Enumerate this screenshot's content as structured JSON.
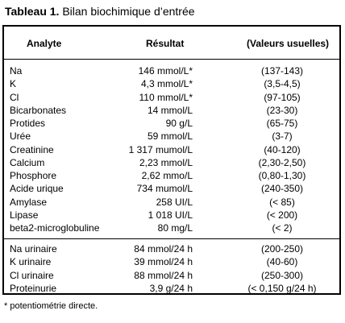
{
  "title": {
    "label": "Tableau 1.",
    "text": " Bilan biochimique d’entrée"
  },
  "headers": {
    "analyte": "Analyte",
    "result": "Résultat",
    "ref": "(Valeurs usuelles)"
  },
  "group1": [
    {
      "analyte": "Na",
      "result": "146 mmol/L*",
      "ref": "(137-143)"
    },
    {
      "analyte": "K",
      "result": "4,3 mmol/L*",
      "ref": "(3,5-4,5)"
    },
    {
      "analyte": "Cl",
      "result": "110 mmol/L*",
      "ref": "(97-105)"
    },
    {
      "analyte": "Bicarbonates",
      "result": "14 mmol/L",
      "ref": "(23-30)"
    },
    {
      "analyte": "Protides",
      "result": "90 g/L",
      "ref": "(65-75)"
    },
    {
      "analyte": "Urée",
      "result": "59 mmol/L",
      "ref": "(3-7)"
    },
    {
      "analyte": "Creatinine",
      "result": "1 317 mumol/L",
      "ref": "(40-120)"
    },
    {
      "analyte": "Calcium",
      "result": "2,23 mmol/L",
      "ref": "(2,30-2,50)"
    },
    {
      "analyte": "Phosphore",
      "result": "2,62 mmo/L",
      "ref": "(0,80-1,30)"
    },
    {
      "analyte": "Acide urique",
      "result": "734 mumol/L",
      "ref": "(240-350)"
    },
    {
      "analyte": "Amylase",
      "result": "258 UI/L",
      "ref": "(< 85)"
    },
    {
      "analyte": "Lipase",
      "result": "1 018 UI/L",
      "ref": "(< 200)"
    },
    {
      "analyte": "beta2-microglobuline",
      "result": "80 mg/L",
      "ref": "(< 2)"
    }
  ],
  "group2": [
    {
      "analyte": "Na urinaire",
      "result": "84 mmol/24 h",
      "ref": "(200-250)"
    },
    {
      "analyte": "K urinaire",
      "result": "39 mmol/24 h",
      "ref": "(40-60)"
    },
    {
      "analyte": "Cl urinaire",
      "result": "88 mmol/24 h",
      "ref": "(250-300)"
    },
    {
      "analyte": "Proteinurie",
      "result": "3,9 g/24 h",
      "ref": "(< 0,150 g/24 h)"
    }
  ],
  "footnote": "* potentiométrie directe."
}
